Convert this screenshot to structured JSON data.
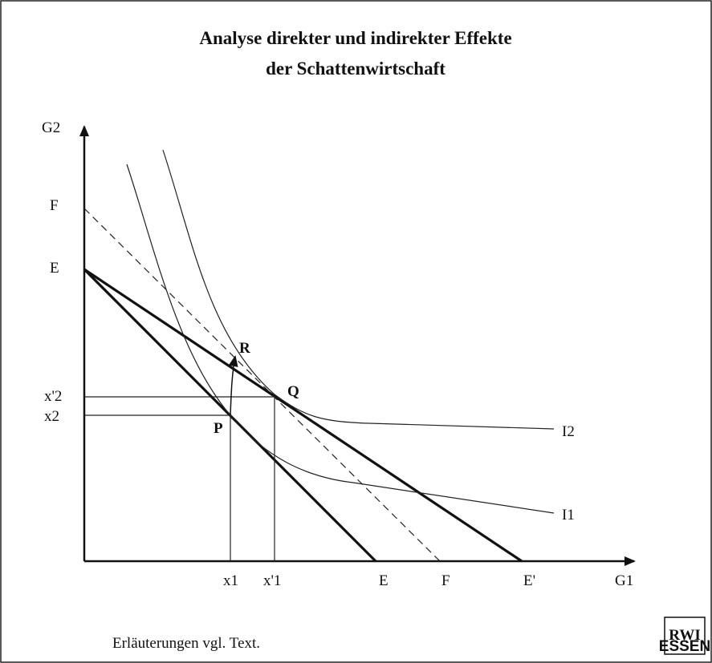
{
  "title": [
    "Analyse direkter und indirekter Effekte",
    "der Schattenwirtschaft"
  ],
  "axes": {
    "y": "G2",
    "x": "G1"
  },
  "y_labels": [
    "F",
    "E",
    "x'2",
    "x2"
  ],
  "x_labels": [
    "x1",
    "x'1",
    "E",
    "F",
    "E'"
  ],
  "points": [
    "R",
    "Q",
    "P"
  ],
  "curves": [
    "I2",
    "I1"
  ],
  "note": "Erläuterungen vgl. Text.",
  "logo": {
    "name": "RWI",
    "sub": "ESSEN"
  }
}
